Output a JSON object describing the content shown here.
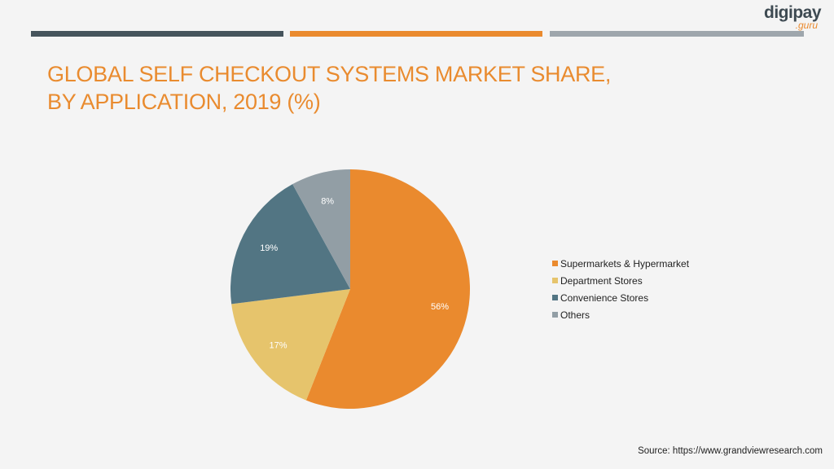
{
  "brand": {
    "logo_main": "digipay",
    "logo_sub": ".guru"
  },
  "colors": {
    "bar_dark": "#46545c",
    "bar_orange": "#ea8a2e",
    "bar_gray": "#9ea6ac",
    "title": "#e98b2f",
    "logo_dark": "#3e4a52",
    "logo_accent": "#ea8a2e"
  },
  "title": {
    "line1": "GLOBAL SELF CHECKOUT SYSTEMS MARKET SHARE,",
    "line2": "BY APPLICATION, 2019 (%)"
  },
  "chart_data": {
    "type": "pie",
    "title": "GLOBAL SELF CHECKOUT SYSTEMS MARKET SHARE, BY APPLICATION, 2019 (%)",
    "categories": [
      "Supermarkets & Hypermarket",
      "Department Stores",
      "Convenience Stores",
      "Others"
    ],
    "values": [
      56,
      17,
      19,
      8
    ],
    "labels": [
      "56%",
      "17%",
      "19%",
      "8%"
    ],
    "colors": [
      "#ea8a2e",
      "#e6c46c",
      "#527583",
      "#929ea5"
    ],
    "legend": "right",
    "start_angle": "top, clockwise"
  },
  "source": "Source: https://www.grandviewresearch.com"
}
